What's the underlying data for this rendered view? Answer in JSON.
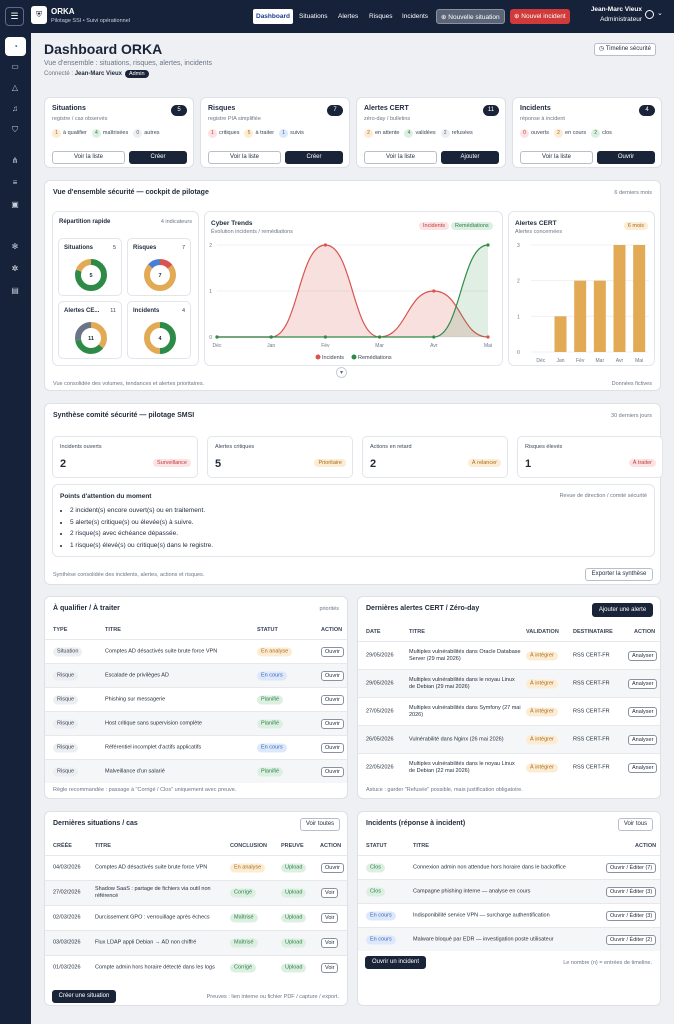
{
  "nav": {
    "menu_icon": "menu-icon",
    "logo_icon": "shield-icon",
    "brand": "ORKA",
    "subtitle": "Pilotage SSI • Suivi opérationnel",
    "links": [
      "Dashboard",
      "Situations",
      "Alertes",
      "Risques",
      "Incidents"
    ],
    "new_situation": "Nouvelle situation",
    "new_incident": "Nouvel incident",
    "user_name": "Jean-Marc Vieux",
    "user_role": "Administrateur"
  },
  "header": {
    "title": "Dashboard ORKA",
    "subtitle": "Vue d'ensemble : situations, risques, alertes, incidents",
    "connected_label": "Connecté :",
    "user": "Jean-Marc Vieux",
    "role_badge": "Admin",
    "timeline_button": "Timeline sécurité"
  },
  "summary": [
    {
      "title": "Situations",
      "subtitle": "registre / cas observés",
      "count": "5",
      "stats": [
        {
          "n": "1",
          "label": "à qualifier"
        },
        {
          "n": "4",
          "label": "maîtrisées"
        },
        {
          "n": "0",
          "label": "autres"
        }
      ],
      "btn1": "Voir la liste",
      "btn2": "Créer"
    },
    {
      "title": "Risques",
      "subtitle": "registre PIA simplifiée",
      "count": "7",
      "stats": [
        {
          "n": "1",
          "label": "critiques"
        },
        {
          "n": "5",
          "label": "à traiter"
        },
        {
          "n": "1",
          "label": "suivis"
        }
      ],
      "btn1": "Voir la liste",
      "btn2": "Créer"
    },
    {
      "title": "Alertes CERT",
      "subtitle": "zéro-day / bulletins",
      "count": "11",
      "stats": [
        {
          "n": "2",
          "label": "en attente"
        },
        {
          "n": "4",
          "label": "validées"
        },
        {
          "n": "2",
          "label": "refusées"
        }
      ],
      "btn1": "Voir la liste",
      "btn2": "Ajouter"
    },
    {
      "title": "Incidents",
      "subtitle": "réponse à incident",
      "count": "4",
      "stats": [
        {
          "n": "0",
          "label": "ouverts"
        },
        {
          "n": "2",
          "label": "en cours"
        },
        {
          "n": "2",
          "label": "clos"
        }
      ],
      "btn1": "Voir la liste",
      "btn2": "Ouvrir"
    }
  ],
  "overview": {
    "title": "Vue d'ensemble sécurité — cockpit de pilotage",
    "period": "6 derniers mois",
    "rapid_title": "Répartition rapide",
    "rapid_count": "4 indicateurs",
    "donuts": [
      {
        "label": "Situations",
        "value": "5"
      },
      {
        "label": "Risques",
        "value": "7"
      },
      {
        "label": "Alertes CE...",
        "value": "11"
      },
      {
        "label": "Incidents",
        "value": "4"
      }
    ],
    "trends_title": "Cyber Trends",
    "trends_sub": "Évolution incidents / remédiations",
    "tag1": "Incidents",
    "tag2": "Remédiations",
    "cert_title": "Alertes CERT",
    "cert_sub": "Alertes concernées",
    "cert_tag": "6 mois",
    "footer_left": "Vue consolidée des volumes, tendances et alertes prioritaires.",
    "footer_right": "Données fictives"
  },
  "chart_data": [
    {
      "type": "area",
      "title": "Cyber Trends",
      "categories": [
        "Déc",
        "Jan",
        "Fév",
        "Mar",
        "Avr",
        "Mai"
      ],
      "ylim": [
        0,
        2
      ],
      "yticks": [
        "0",
        "1",
        "2"
      ],
      "series": [
        {
          "name": "Incidents",
          "values": [
            0,
            0,
            2,
            0,
            1,
            0
          ]
        },
        {
          "name": "Remédiations",
          "values": [
            0,
            0,
            0,
            0,
            0,
            2
          ]
        }
      ]
    },
    {
      "type": "bar",
      "title": "Alertes CERT",
      "categories": [
        "Déc",
        "Jan",
        "Fév",
        "Mar",
        "Avr",
        "Mai"
      ],
      "ylim": [
        0,
        3
      ],
      "yticks": [
        "0",
        "1",
        "2",
        "3"
      ],
      "values": [
        0,
        1,
        2,
        2,
        3,
        3
      ]
    }
  ],
  "committee": {
    "title": "Synthèse comité sécurité — pilotage SMSI",
    "period": "30 derniers jours",
    "kpis": [
      {
        "label": "Incidents ouverts",
        "value": "2",
        "tag": "Surveillance"
      },
      {
        "label": "Alertes critiques",
        "value": "5",
        "tag": "Prioritaire"
      },
      {
        "label": "Actions en retard",
        "value": "2",
        "tag": "À relancer"
      },
      {
        "label": "Risques élevés",
        "value": "1",
        "tag": "À traiter"
      }
    ],
    "attention_title": "Points d'attention du moment",
    "attention_note": "Revue de direction / comité sécurité",
    "points": [
      "2 incident(s) encore ouvert(s) ou en traitement.",
      "5 alerte(s) critique(s) ou élevée(s) à suivre.",
      "2 risque(s) avec échéance dépassée.",
      "1 risque(s) élevé(s) ou critique(s) dans le registre."
    ],
    "footer": "Synthèse consolidée des incidents, alertes, actions et risques.",
    "export": "Exporter la synthèse"
  },
  "qualify": {
    "title": "À qualifier / À traiter",
    "badge": "priorités",
    "headers": [
      "TYPE",
      "TITRE",
      "STATUT",
      "ACTION"
    ],
    "rows": [
      {
        "type": "Situation",
        "title": "Comptes AD désactivés suite brute force VPN",
        "status": "En analyse",
        "action": "Ouvrir"
      },
      {
        "type": "Risque",
        "title": "Escalade de privilèges AD",
        "status": "En cours",
        "action": "Ouvrir"
      },
      {
        "type": "Risque",
        "title": "Phishing sur messagerie",
        "status": "Planifié",
        "action": "Ouvrir"
      },
      {
        "type": "Risque",
        "title": "Host critique sans supervision complète",
        "status": "Planifié",
        "action": "Ouvrir"
      },
      {
        "type": "Risque",
        "title": "Référentiel incomplet d'actifs applicatifs",
        "status": "En cours",
        "action": "Ouvrir"
      },
      {
        "type": "Risque",
        "title": "Malveillance d'un salarié",
        "status": "Planifié",
        "action": "Ouvrir"
      }
    ],
    "footer": "Règle recommandée : passage à \"Corrigé / Clos\" uniquement avec preuve."
  },
  "cert": {
    "title": "Dernières alertes CERT / Zéro-day",
    "add": "Ajouter une alerte",
    "headers": [
      "DATE",
      "TITRE",
      "VALIDATION",
      "DESTINATAIRE",
      "ACTION"
    ],
    "rows": [
      {
        "date": "29/05/2026",
        "title": "Multiples vulnérabilités dans Oracle Database Server (29 mai 2026)",
        "validation": "À intégrer",
        "dest": "RSS CERT-FR",
        "action": "Analyser"
      },
      {
        "date": "29/05/2026",
        "title": "Multiples vulnérabilités dans le noyau Linux de Debian (29 mai 2026)",
        "validation": "À intégrer",
        "dest": "RSS CERT-FR",
        "action": "Analyser"
      },
      {
        "date": "27/05/2026",
        "title": "Multiples vulnérabilités dans Symfony (27 mai 2026)",
        "validation": "À intégrer",
        "dest": "RSS CERT-FR",
        "action": "Analyser"
      },
      {
        "date": "26/05/2026",
        "title": "Vulnérabilité dans Nginx (26 mai 2026)",
        "validation": "À intégrer",
        "dest": "RSS CERT-FR",
        "action": "Analyser"
      },
      {
        "date": "22/05/2026",
        "title": "Multiples vulnérabilités dans le noyau Linux de Debian (22 mai 2026)",
        "validation": "À intégrer",
        "dest": "RSS CERT-FR",
        "action": "Analyser"
      }
    ],
    "footer": "Astuce : garder \"Refusée\" possible, mais justification obligatoire."
  },
  "situations": {
    "title": "Dernières situations / cas",
    "see_all": "Voir toutes",
    "headers": [
      "CRÉÉE",
      "TITRE",
      "CONCLUSION",
      "PREUVE",
      "ACTION"
    ],
    "rows": [
      {
        "date": "04/03/2026",
        "title": "Comptes AD désactivés suite brute force VPN",
        "conclusion": "En analyse",
        "proof": "Upload",
        "action": "Ouvrir"
      },
      {
        "date": "27/02/2026",
        "title": "Shadow SaaS : partage de fichiers via outil non référencé",
        "conclusion": "Corrigé",
        "proof": "Upload",
        "action": "Voir"
      },
      {
        "date": "02/03/2026",
        "title": "Durcissement GPO : verrouillage après échecs",
        "conclusion": "Maîtrisé",
        "proof": "Upload",
        "action": "Voir"
      },
      {
        "date": "03/03/2026",
        "title": "Flux LDAP appli Debian → AD non chiffré",
        "conclusion": "Maîtrisé",
        "proof": "Upload",
        "action": "Voir"
      },
      {
        "date": "01/03/2026",
        "title": "Compte admin hors horaire détecté dans les logs",
        "conclusion": "Corrigé",
        "proof": "Upload",
        "action": "Voir"
      }
    ],
    "create": "Créer une situation",
    "footer": "Preuves : lien interne ou fichier PDF / capture / export."
  },
  "incidents": {
    "title": "Incidents (réponse à incident)",
    "see_all": "Voir tous",
    "headers": [
      "STATUT",
      "TITRE",
      "ACTION"
    ],
    "rows": [
      {
        "status": "Clos",
        "title": "Connexion admin non attendue hors horaire dans le backoffice",
        "action": "Ouvrir / Éditer (7)"
      },
      {
        "status": "Clos",
        "title": "Campagne phishing interne — analyse en cours",
        "action": "Ouvrir / Éditer (3)"
      },
      {
        "status": "En cours",
        "title": "Indisponibilité service VPN — surcharge authentification",
        "action": "Ouvrir / Éditer (3)"
      },
      {
        "status": "En cours",
        "title": "Malware bloqué par EDR — investigation poste utilisateur",
        "action": "Ouvrir / Éditer (2)"
      }
    ],
    "open": "Ouvrir un incident",
    "footer": "Le nombre (n) = entrées de timeline."
  },
  "colors": {
    "navy": "#16223a",
    "red": "#d9534f",
    "green": "#2e8b47",
    "amber": "#e2aa55"
  }
}
